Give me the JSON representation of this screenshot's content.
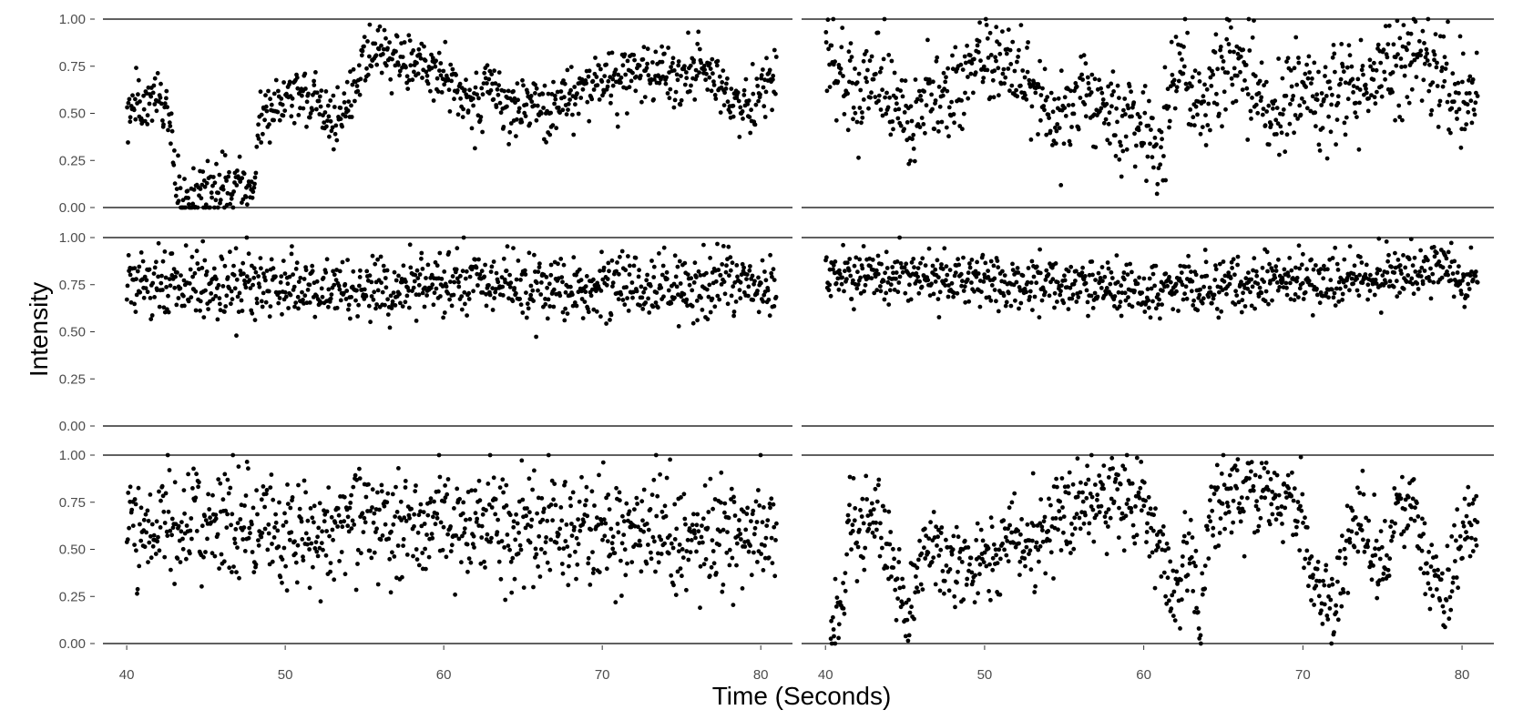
{
  "chart_data": {
    "type": "scatter",
    "layout": "3 rows x 2 columns of small-multiple panels, shared axes",
    "xlabel": "Time (Seconds)",
    "ylabel": "Intensity",
    "xlim": [
      38.5,
      82.0
    ],
    "ylim": [
      0,
      1
    ],
    "x_ticks": [
      40,
      50,
      60,
      70,
      80
    ],
    "x_tick_labels": [
      "40",
      "50",
      "60",
      "70",
      "80"
    ],
    "y_ticks": [
      0,
      0.25,
      0.5,
      0.75,
      1
    ],
    "y_tick_labels": [
      "0.00",
      "0.25",
      "0.50",
      "0.75",
      "1.00"
    ],
    "grid": false,
    "reference_lines_at_y": [
      0,
      1
    ],
    "point_color": "#000000",
    "panels": [
      {
        "row": 1,
        "col": 1,
        "samples_per_second": 22,
        "noise_sd": 0.08,
        "trend": [
          [
            40.0,
            0.55
          ],
          [
            41.0,
            0.52
          ],
          [
            42.0,
            0.58
          ],
          [
            42.8,
            0.45
          ],
          [
            43.1,
            0.03
          ],
          [
            44.0,
            0.06
          ],
          [
            45.0,
            0.09
          ],
          [
            46.0,
            0.09
          ],
          [
            47.0,
            0.12
          ],
          [
            48.0,
            0.1
          ],
          [
            48.4,
            0.5
          ],
          [
            50.0,
            0.6
          ],
          [
            51.0,
            0.6
          ],
          [
            52.0,
            0.55
          ],
          [
            53.0,
            0.45
          ],
          [
            54.0,
            0.55
          ],
          [
            55.0,
            0.8
          ],
          [
            56.0,
            0.83
          ],
          [
            58.0,
            0.75
          ],
          [
            60.0,
            0.72
          ],
          [
            61.0,
            0.6
          ],
          [
            62.0,
            0.55
          ],
          [
            63.0,
            0.65
          ],
          [
            64.0,
            0.52
          ],
          [
            66.0,
            0.55
          ],
          [
            67.0,
            0.5
          ],
          [
            68.0,
            0.6
          ],
          [
            70.0,
            0.68
          ],
          [
            72.0,
            0.7
          ],
          [
            74.0,
            0.72
          ],
          [
            75.0,
            0.65
          ],
          [
            76.0,
            0.78
          ],
          [
            77.0,
            0.75
          ],
          [
            78.0,
            0.6
          ],
          [
            79.0,
            0.5
          ],
          [
            80.0,
            0.65
          ],
          [
            81.0,
            0.72
          ]
        ]
      },
      {
        "row": 1,
        "col": 2,
        "samples_per_second": 22,
        "noise_sd": 0.13,
        "trend": [
          [
            40.0,
            0.8
          ],
          [
            41.0,
            0.72
          ],
          [
            42.0,
            0.6
          ],
          [
            43.0,
            0.72
          ],
          [
            44.0,
            0.55
          ],
          [
            45.0,
            0.45
          ],
          [
            46.0,
            0.55
          ],
          [
            47.0,
            0.65
          ],
          [
            48.0,
            0.6
          ],
          [
            49.0,
            0.75
          ],
          [
            50.0,
            0.8
          ],
          [
            51.0,
            0.82
          ],
          [
            52.0,
            0.72
          ],
          [
            53.0,
            0.65
          ],
          [
            54.0,
            0.5
          ],
          [
            55.0,
            0.4
          ],
          [
            56.0,
            0.65
          ],
          [
            57.0,
            0.55
          ],
          [
            58.0,
            0.4
          ],
          [
            59.0,
            0.5
          ],
          [
            60.0,
            0.45
          ],
          [
            61.0,
            0.3
          ],
          [
            62.0,
            0.7
          ],
          [
            63.0,
            0.65
          ],
          [
            64.0,
            0.55
          ],
          [
            65.0,
            0.75
          ],
          [
            66.0,
            0.8
          ],
          [
            67.0,
            0.6
          ],
          [
            68.0,
            0.5
          ],
          [
            69.0,
            0.62
          ],
          [
            70.0,
            0.6
          ],
          [
            71.0,
            0.55
          ],
          [
            72.0,
            0.6
          ],
          [
            73.0,
            0.65
          ],
          [
            74.0,
            0.6
          ],
          [
            75.0,
            0.75
          ],
          [
            76.0,
            0.7
          ],
          [
            77.0,
            0.82
          ],
          [
            78.0,
            0.78
          ],
          [
            79.0,
            0.7
          ],
          [
            80.0,
            0.55
          ],
          [
            81.0,
            0.6
          ]
        ]
      },
      {
        "row": 2,
        "col": 1,
        "samples_per_second": 22,
        "noise_sd": 0.085,
        "trend": [
          [
            40.0,
            0.76
          ],
          [
            45.0,
            0.75
          ],
          [
            50.0,
            0.74
          ],
          [
            55.0,
            0.73
          ],
          [
            60.0,
            0.76
          ],
          [
            65.0,
            0.75
          ],
          [
            70.0,
            0.74
          ],
          [
            75.0,
            0.75
          ],
          [
            81.0,
            0.76
          ]
        ]
      },
      {
        "row": 2,
        "col": 2,
        "samples_per_second": 22,
        "noise_sd": 0.07,
        "trend": [
          [
            40.0,
            0.8
          ],
          [
            45.0,
            0.79
          ],
          [
            50.0,
            0.77
          ],
          [
            55.0,
            0.75
          ],
          [
            60.0,
            0.72
          ],
          [
            65.0,
            0.75
          ],
          [
            70.0,
            0.76
          ],
          [
            75.0,
            0.8
          ],
          [
            78.0,
            0.83
          ],
          [
            81.0,
            0.78
          ]
        ]
      },
      {
        "row": 3,
        "col": 1,
        "samples_per_second": 22,
        "noise_sd": 0.15,
        "trend": [
          [
            40.0,
            0.65
          ],
          [
            45.0,
            0.65
          ],
          [
            50.0,
            0.6
          ],
          [
            55.0,
            0.65
          ],
          [
            60.0,
            0.62
          ],
          [
            65.0,
            0.62
          ],
          [
            70.0,
            0.6
          ],
          [
            75.0,
            0.55
          ],
          [
            81.0,
            0.6
          ]
        ]
      },
      {
        "row": 3,
        "col": 2,
        "samples_per_second": 22,
        "noise_sd": 0.12,
        "trend": [
          [
            40.3,
            0.15
          ],
          [
            40.6,
            0.03
          ],
          [
            41.0,
            0.1
          ],
          [
            41.5,
            0.75
          ],
          [
            42.0,
            0.5
          ],
          [
            43.0,
            0.7
          ],
          [
            44.0,
            0.55
          ],
          [
            44.5,
            0.3
          ],
          [
            45.5,
            0.2
          ],
          [
            46.0,
            0.55
          ],
          [
            47.0,
            0.45
          ],
          [
            49.0,
            0.4
          ],
          [
            51.0,
            0.5
          ],
          [
            53.0,
            0.55
          ],
          [
            55.0,
            0.68
          ],
          [
            57.0,
            0.75
          ],
          [
            59.0,
            0.75
          ],
          [
            60.0,
            0.7
          ],
          [
            61.0,
            0.55
          ],
          [
            62.0,
            0.2
          ],
          [
            63.0,
            0.5
          ],
          [
            63.5,
            0.05
          ],
          [
            64.0,
            0.6
          ],
          [
            65.0,
            0.75
          ],
          [
            67.0,
            0.82
          ],
          [
            69.0,
            0.8
          ],
          [
            70.0,
            0.6
          ],
          [
            71.0,
            0.3
          ],
          [
            72.0,
            0.15
          ],
          [
            73.0,
            0.65
          ],
          [
            74.0,
            0.55
          ],
          [
            75.0,
            0.4
          ],
          [
            76.0,
            0.75
          ],
          [
            77.0,
            0.7
          ],
          [
            78.0,
            0.35
          ],
          [
            79.0,
            0.2
          ],
          [
            80.0,
            0.6
          ],
          [
            81.0,
            0.65
          ]
        ]
      }
    ]
  }
}
